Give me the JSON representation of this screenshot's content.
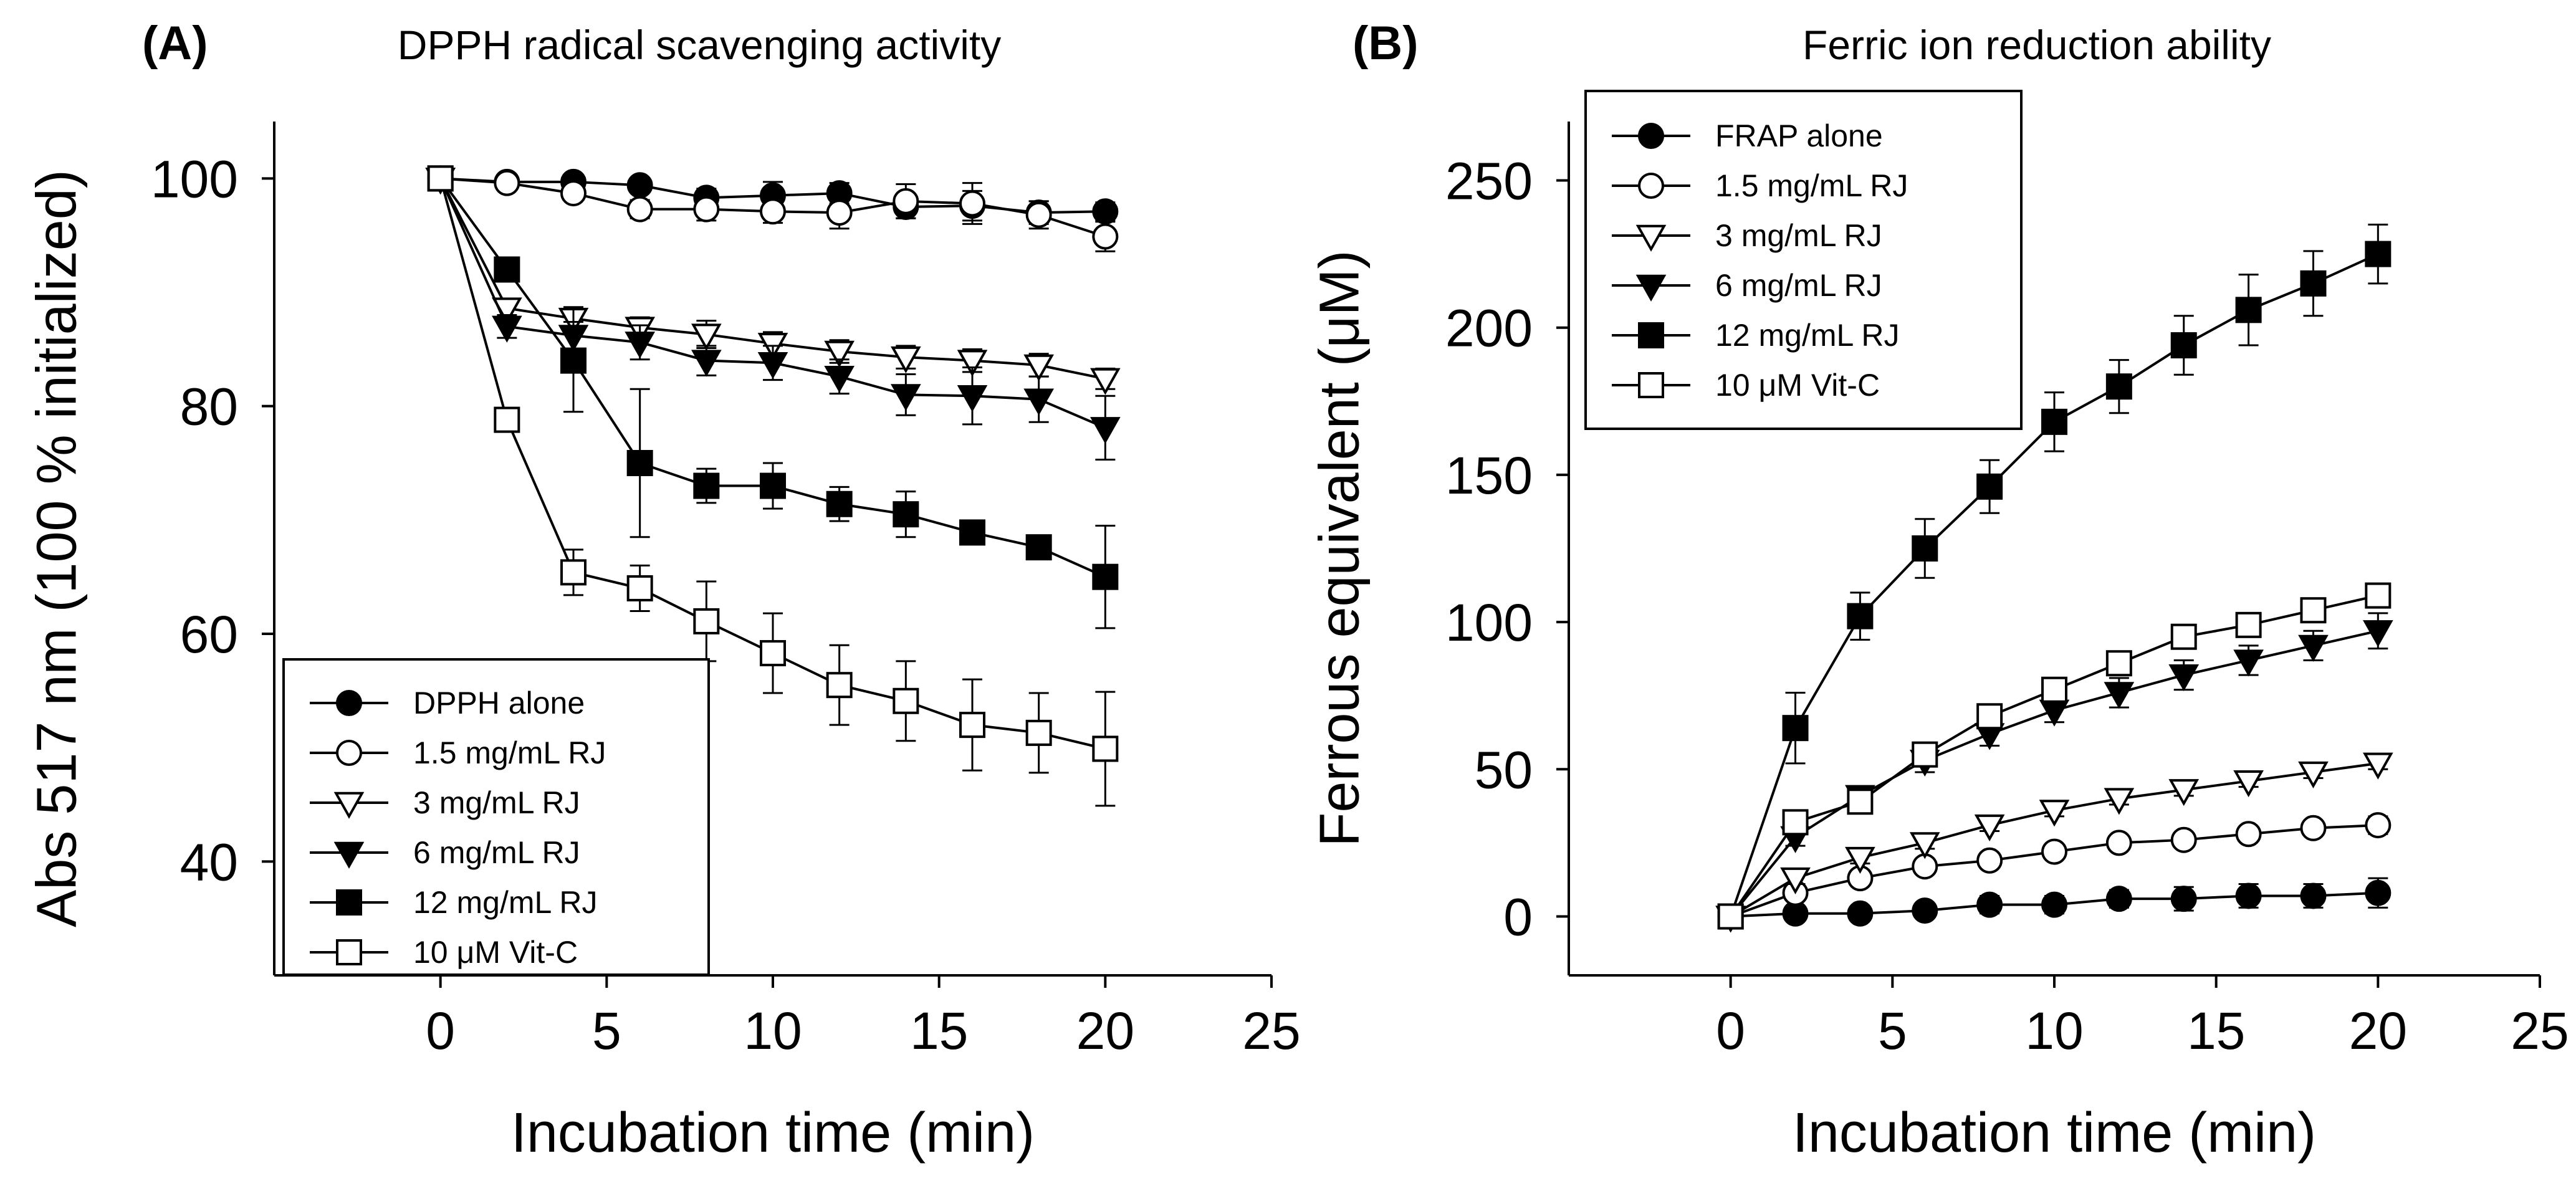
{
  "chart_data": [
    {
      "type": "line",
      "panel_label": "(A)",
      "title": "DPPH radical scavenging activity",
      "xlabel": "Incubation time (min)",
      "ylabel": "Abs 517 nm (100 % initialized)",
      "xlim": [
        -5,
        25
      ],
      "ylim": [
        30,
        105
      ],
      "xticks": [
        0,
        5,
        10,
        15,
        20,
        25
      ],
      "yticks": [
        40,
        60,
        80,
        100
      ],
      "grid": false,
      "legend_position": "bottom-left",
      "x": [
        0,
        2,
        4,
        6,
        8,
        10,
        12,
        14,
        16,
        18,
        20
      ],
      "series": [
        {
          "name": "DPPH alone",
          "marker": "circle",
          "fill": "#000000",
          "values": [
            100,
            99.7,
            99.7,
            99.4,
            98.3,
            98.5,
            98.7,
            97.5,
            97.6,
            97.0,
            97.1
          ],
          "errors": [
            0,
            0.5,
            0.5,
            0.6,
            0.8,
            1.2,
            0.9,
            1.0,
            1.3,
            1.0,
            0.8
          ]
        },
        {
          "name": "1.5 mg/mL RJ",
          "marker": "circle",
          "fill": "#ffffff",
          "values": [
            100,
            99.6,
            98.7,
            97.3,
            97.3,
            97.1,
            97.0,
            98.0,
            97.8,
            96.8,
            94.9
          ],
          "errors": [
            0,
            0.5,
            0.6,
            0.8,
            1.0,
            1.0,
            1.4,
            1.5,
            1.8,
            1.2,
            1.3
          ]
        },
        {
          "name": "3 mg/mL RJ",
          "marker": "triangle-down",
          "fill": "#ffffff",
          "values": [
            100,
            88.6,
            87.7,
            86.9,
            86.3,
            85.5,
            84.8,
            84.3,
            84.0,
            83.6,
            82.4
          ],
          "errors": [
            0,
            0.8,
            1.0,
            0.9,
            1.2,
            1.0,
            1.0,
            1.0,
            1.0,
            1.0,
            0.9
          ]
        },
        {
          "name": "6 mg/mL RJ",
          "marker": "triangle-down",
          "fill": "#000000",
          "values": [
            100,
            87.0,
            86.2,
            85.6,
            84.0,
            83.8,
            82.6,
            81.0,
            80.9,
            80.6,
            78.1
          ],
          "errors": [
            0,
            1.0,
            1.2,
            1.5,
            1.3,
            1.5,
            1.5,
            1.8,
            2.5,
            2.0,
            2.8
          ]
        },
        {
          "name": "12 mg/mL RJ",
          "marker": "square",
          "fill": "#000000",
          "values": [
            100,
            92.0,
            84.0,
            75.0,
            73.0,
            73.0,
            71.4,
            70.5,
            68.9,
            67.6,
            65.0
          ],
          "errors": [
            0,
            1.0,
            4.5,
            6.5,
            1.5,
            2.0,
            1.5,
            2.0,
            1.0,
            0.5,
            4.5
          ]
        },
        {
          "name": "10 μM Vit-C",
          "marker": "square",
          "fill": "#ffffff",
          "values": [
            100,
            78.8,
            65.4,
            64.0,
            61.1,
            58.3,
            55.5,
            54.1,
            52.0,
            51.3,
            49.9
          ],
          "errors": [
            0,
            0.5,
            2.0,
            2.0,
            3.5,
            3.5,
            3.5,
            3.5,
            4.0,
            3.5,
            5.0
          ]
        }
      ]
    },
    {
      "type": "line",
      "panel_label": "(B)",
      "title": "Ferric ion reduction ability",
      "xlabel": "Incubation time (min)",
      "ylabel": "Ferrous equivalent (μM)",
      "xlim": [
        -5,
        25
      ],
      "ylim": [
        -20,
        270
      ],
      "xticks": [
        0,
        5,
        10,
        15,
        20,
        25
      ],
      "yticks": [
        0,
        50,
        100,
        150,
        200,
        250
      ],
      "grid": false,
      "legend_position": "top-left",
      "x": [
        0,
        2,
        4,
        6,
        8,
        10,
        12,
        14,
        16,
        18,
        20
      ],
      "series": [
        {
          "name": "FRAP alone",
          "marker": "circle",
          "fill": "#000000",
          "values": [
            0,
            1,
            1,
            2,
            4,
            4,
            6,
            6,
            7,
            7,
            8
          ],
          "errors": [
            0,
            2,
            2,
            2,
            3,
            3,
            3,
            4,
            4,
            4,
            5
          ]
        },
        {
          "name": "1.5 mg/mL RJ",
          "marker": "circle",
          "fill": "#ffffff",
          "values": [
            0,
            8,
            13,
            17,
            19,
            22,
            25,
            26,
            28,
            30,
            31
          ],
          "errors": [
            0,
            2,
            2,
            2,
            2,
            2,
            2,
            2,
            2,
            2,
            3
          ]
        },
        {
          "name": "3 mg/mL RJ",
          "marker": "triangle-down",
          "fill": "#ffffff",
          "values": [
            0,
            13,
            20,
            25,
            31,
            36,
            40,
            43,
            46,
            49,
            52
          ],
          "errors": [
            0,
            2,
            2,
            2,
            2,
            2,
            2,
            2,
            2,
            2,
            2
          ]
        },
        {
          "name": "6 mg/mL RJ",
          "marker": "triangle-down",
          "fill": "#000000",
          "values": [
            0,
            27,
            41,
            53,
            62,
            70,
            76,
            82,
            87,
            92,
            97
          ],
          "errors": [
            0,
            3,
            3,
            4,
            4,
            4,
            5,
            5,
            5,
            5,
            6
          ]
        },
        {
          "name": "12 mg/mL RJ",
          "marker": "square",
          "fill": "#000000",
          "values": [
            0,
            64,
            102,
            125,
            146,
            168,
            180,
            194,
            206,
            215,
            225
          ],
          "errors": [
            0,
            12,
            8,
            10,
            9,
            10,
            9,
            10,
            12,
            11,
            10
          ]
        },
        {
          "name": "10 μM Vit-C",
          "marker": "square",
          "fill": "#ffffff",
          "values": [
            0,
            32,
            39,
            55,
            68,
            77,
            86,
            95,
            99,
            104,
            109
          ],
          "errors": [
            0,
            3,
            4,
            4,
            4,
            4,
            4,
            4,
            4,
            4,
            4
          ]
        }
      ]
    }
  ]
}
